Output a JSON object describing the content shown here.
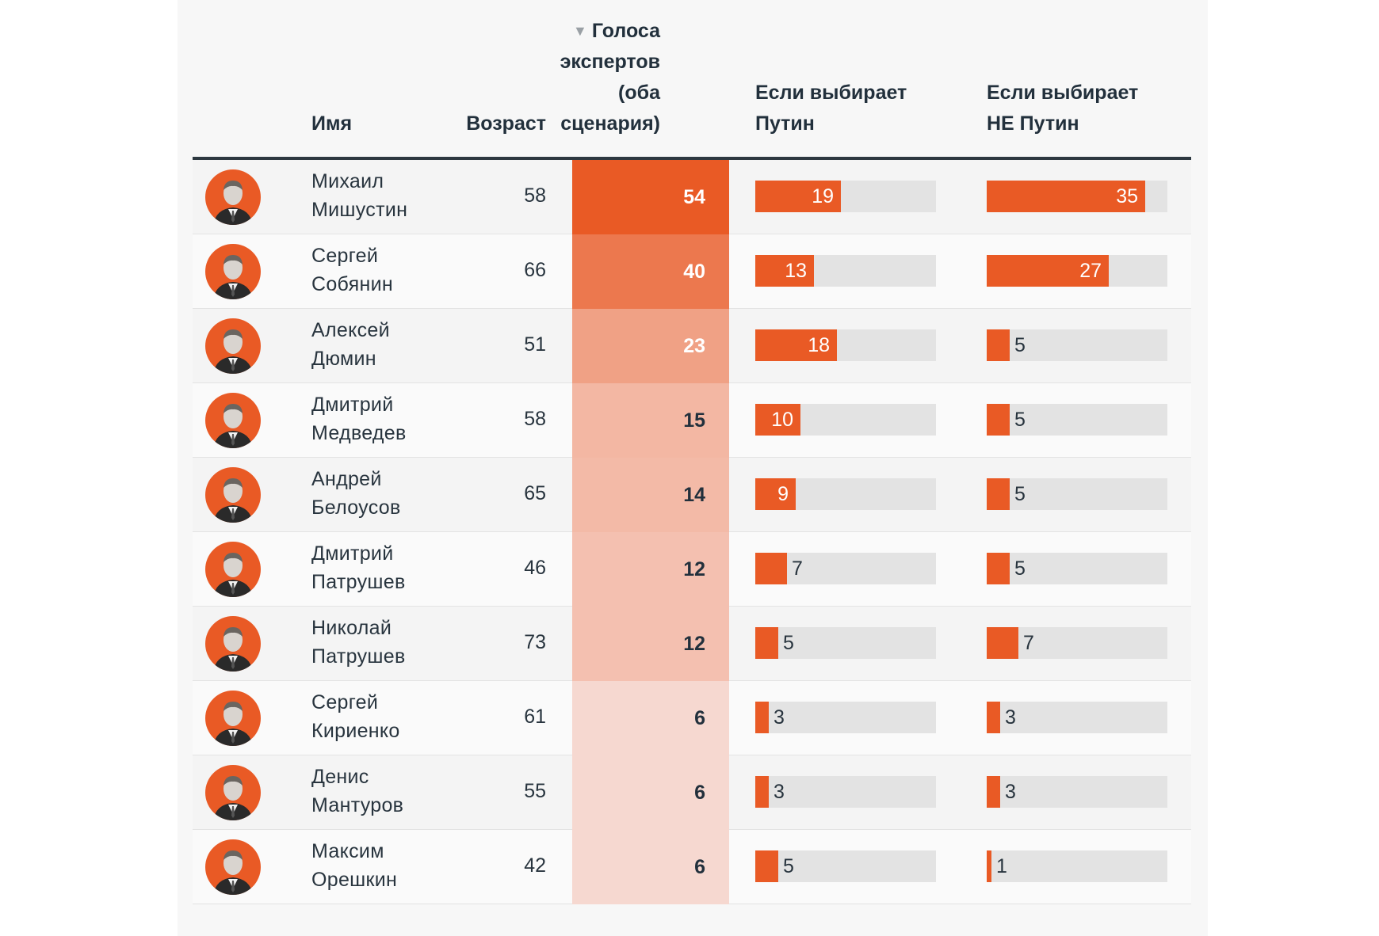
{
  "chart_data": {
    "type": "table",
    "columns": {
      "name": "Имя",
      "age": "Возраст",
      "votes": "Голоса экспертов (оба сценария)",
      "votes_sort_icon": "sort-down-triangle-icon",
      "if_putin": "Если выбирает Путин",
      "if_not_putin": "Если выбирает НЕ Путин"
    },
    "bar_scale_max": 40,
    "colors": {
      "accent": "#e95a25",
      "bar_track": "#e3e3e3",
      "heat_max": "#e95a25",
      "heat_min": "#f6d8d0"
    },
    "rows": [
      {
        "first": "Михаил",
        "last": "Мишустин",
        "age": "58",
        "votes": 54,
        "if_putin": 19,
        "if_not_putin": 35
      },
      {
        "first": "Сергей",
        "last": "Собянин",
        "age": "66",
        "votes": 40,
        "if_putin": 13,
        "if_not_putin": 27
      },
      {
        "first": "Алексей",
        "last": "Дюмин",
        "age": "51",
        "votes": 23,
        "if_putin": 18,
        "if_not_putin": 5
      },
      {
        "first": "Дмитрий",
        "last": "Медведев",
        "age": "58",
        "votes": 15,
        "if_putin": 10,
        "if_not_putin": 5
      },
      {
        "first": "Андрей",
        "last": "Белоусов",
        "age": "65",
        "votes": 14,
        "if_putin": 9,
        "if_not_putin": 5
      },
      {
        "first": "Дмитрий",
        "last": "Патрушев",
        "age": "46",
        "votes": 12,
        "if_putin": 7,
        "if_not_putin": 5
      },
      {
        "first": "Николай",
        "last": "Патрушев",
        "age": "73",
        "votes": 12,
        "if_putin": 5,
        "if_not_putin": 7
      },
      {
        "first": "Сергей",
        "last": "Кириенко",
        "age": "61",
        "votes": 6,
        "if_putin": 3,
        "if_not_putin": 3
      },
      {
        "first": "Денис",
        "last": "Мантуров",
        "age": "55",
        "votes": 6,
        "if_putin": 3,
        "if_not_putin": 3
      },
      {
        "first": "Максим",
        "last": "Орешкин",
        "age": "42",
        "votes": 6,
        "if_putin": 5,
        "if_not_putin": 1
      }
    ]
  }
}
